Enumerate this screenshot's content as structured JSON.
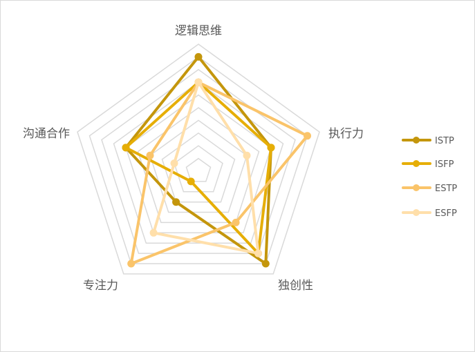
{
  "chart_data": {
    "type": "radar",
    "axes": [
      "逻辑思维",
      "执行力",
      "独创性",
      "专注力",
      "沟通合作"
    ],
    "rmax": 10,
    "rings": 10,
    "grid": true,
    "legend_position": "right",
    "series": [
      {
        "name": "ISTP",
        "color": "#C4960C",
        "values": [
          9,
          6,
          9,
          3,
          6
        ]
      },
      {
        "name": "ISFP",
        "color": "#E6AE06",
        "values": [
          7,
          6,
          8,
          1,
          6
        ]
      },
      {
        "name": "ESTP",
        "color": "#FAC46A",
        "values": [
          7,
          9,
          5,
          9,
          4
        ]
      },
      {
        "name": "ESFP",
        "color": "#FFDFAA",
        "values": [
          7,
          4,
          8,
          6,
          2
        ]
      }
    ]
  }
}
